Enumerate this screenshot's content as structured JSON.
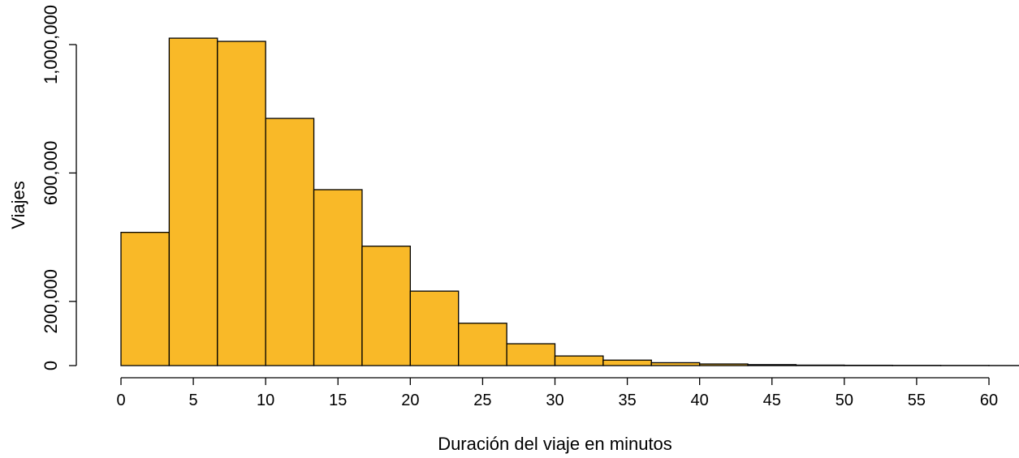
{
  "chart_data": {
    "type": "bar",
    "subtype": "histogram",
    "title": "",
    "xlabel": "Duración del viaje en minutos",
    "ylabel": "Viajes",
    "bin_width": 3.333,
    "bins": [
      {
        "start": 0.0,
        "end": 3.333,
        "value": 415000
      },
      {
        "start": 3.333,
        "end": 6.667,
        "value": 1020000
      },
      {
        "start": 6.667,
        "end": 10.0,
        "value": 1010000
      },
      {
        "start": 10.0,
        "end": 13.333,
        "value": 770000
      },
      {
        "start": 13.333,
        "end": 16.667,
        "value": 548000
      },
      {
        "start": 16.667,
        "end": 20.0,
        "value": 372000
      },
      {
        "start": 20.0,
        "end": 23.333,
        "value": 232000
      },
      {
        "start": 23.333,
        "end": 26.667,
        "value": 132000
      },
      {
        "start": 26.667,
        "end": 30.0,
        "value": 68000
      },
      {
        "start": 30.0,
        "end": 33.333,
        "value": 30000
      },
      {
        "start": 33.333,
        "end": 36.667,
        "value": 17000
      },
      {
        "start": 36.667,
        "end": 40.0,
        "value": 9000
      },
      {
        "start": 40.0,
        "end": 43.333,
        "value": 5000
      },
      {
        "start": 43.333,
        "end": 46.667,
        "value": 3000
      },
      {
        "start": 46.667,
        "end": 50.0,
        "value": 1500
      },
      {
        "start": 50.0,
        "end": 53.333,
        "value": 1000
      },
      {
        "start": 53.333,
        "end": 56.667,
        "value": 700
      },
      {
        "start": 56.667,
        "end": 60.0,
        "value": 500
      },
      {
        "start": 60.0,
        "end": 63.333,
        "value": 300
      }
    ],
    "xlim": [
      0,
      60
    ],
    "ylim": [
      0,
      1000000
    ],
    "x_ticks": [
      0,
      5,
      10,
      15,
      20,
      25,
      30,
      35,
      40,
      45,
      50,
      55,
      60
    ],
    "x_tick_labels": [
      "0",
      "5",
      "10",
      "15",
      "20",
      "25",
      "30",
      "35",
      "40",
      "45",
      "50",
      "55",
      "60"
    ],
    "y_ticks": [
      0,
      200000,
      600000,
      1000000
    ],
    "y_tick_labels": [
      "0",
      "200,000",
      "600,000",
      "1,000,000"
    ],
    "bar_color": "#F9B928",
    "edge_color": "#000000",
    "grid": false
  }
}
